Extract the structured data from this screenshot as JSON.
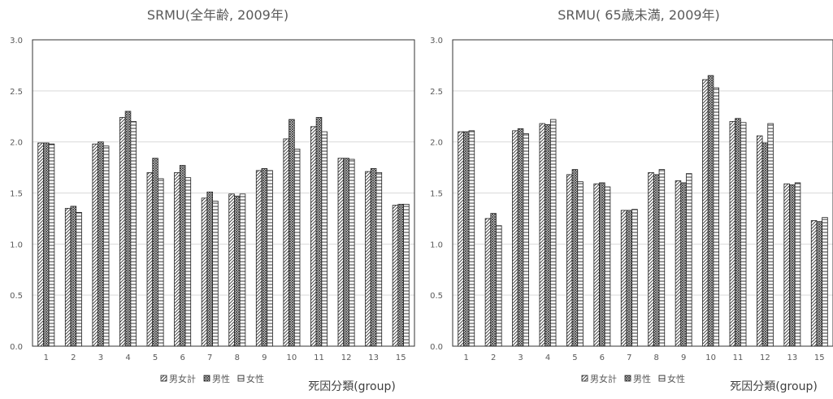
{
  "chart_data": [
    {
      "type": "bar",
      "title": "SRMU(全年齢, 2009年)",
      "xlabel": "死因分類(group)",
      "ylabel": "",
      "ylim": [
        0,
        3.0
      ],
      "yticks": [
        "0.0",
        "0.5",
        "1.0",
        "1.5",
        "2.0",
        "2.5",
        "3.0"
      ],
      "grid": true,
      "legend_position": "bottom",
      "categories": [
        "1",
        "2",
        "3",
        "4",
        "5",
        "6",
        "7",
        "8",
        "9",
        "10",
        "11",
        "12",
        "13",
        "15"
      ],
      "series": [
        {
          "name": "男女計",
          "pattern": "diagonal",
          "values": [
            1.99,
            1.35,
            1.98,
            2.24,
            1.7,
            1.7,
            1.45,
            1.49,
            1.72,
            2.03,
            2.15,
            1.84,
            1.71,
            1.38
          ]
        },
        {
          "name": "男性",
          "pattern": "crosshatch",
          "values": [
            1.99,
            1.37,
            2.0,
            2.3,
            1.84,
            1.77,
            1.51,
            1.47,
            1.74,
            2.22,
            2.24,
            1.84,
            1.74,
            1.39
          ]
        },
        {
          "name": "女性",
          "pattern": "horizontal",
          "values": [
            1.98,
            1.31,
            1.96,
            2.2,
            1.64,
            1.65,
            1.42,
            1.49,
            1.72,
            1.93,
            2.1,
            1.83,
            1.7,
            1.39
          ]
        }
      ]
    },
    {
      "type": "bar",
      "title": "SRMU( 65歳未満, 2009年)",
      "xlabel": "死因分類(group)",
      "ylabel": "",
      "ylim": [
        0,
        3.0
      ],
      "yticks": [
        "0.0",
        "0.5",
        "1.0",
        "1.5",
        "2.0",
        "2.5",
        "3.0"
      ],
      "grid": true,
      "legend_position": "bottom",
      "categories": [
        "1",
        "2",
        "3",
        "4",
        "5",
        "6",
        "7",
        "8",
        "9",
        "10",
        "11",
        "12",
        "13",
        "15"
      ],
      "series": [
        {
          "name": "男女計",
          "pattern": "diagonal",
          "values": [
            2.1,
            1.25,
            2.11,
            2.18,
            1.68,
            1.59,
            1.33,
            1.7,
            1.62,
            2.61,
            2.2,
            2.06,
            1.59,
            1.23
          ]
        },
        {
          "name": "男性",
          "pattern": "crosshatch",
          "values": [
            2.1,
            1.3,
            2.13,
            2.17,
            1.73,
            1.6,
            1.33,
            1.68,
            1.6,
            2.65,
            2.23,
            1.99,
            1.58,
            1.22
          ]
        },
        {
          "name": "女性",
          "pattern": "horizontal",
          "values": [
            2.11,
            1.18,
            2.08,
            2.22,
            1.61,
            1.56,
            1.34,
            1.73,
            1.69,
            2.53,
            2.19,
            2.18,
            1.6,
            1.26
          ]
        }
      ]
    }
  ]
}
